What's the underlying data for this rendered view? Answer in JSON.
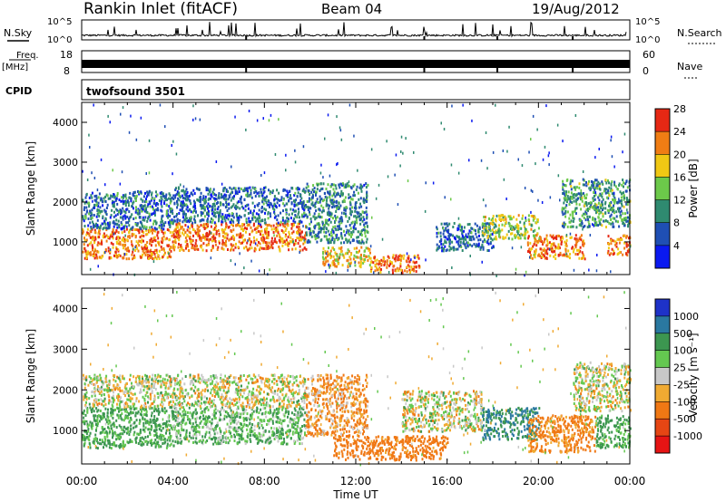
{
  "header": {
    "station": "Rankin Inlet (fitACF)",
    "beam": "Beam 04",
    "date": "19/Aug/2012"
  },
  "panels": {
    "nsky": {
      "label": "N.Sky",
      "tick_top": "10^5",
      "tick_bottom": "10^0"
    },
    "nsearch": {
      "label": "N.Search",
      "tick_top": "10^5",
      "tick_bottom": "10^0"
    },
    "freq": {
      "label_line1": "Freq.",
      "label_line2": "[MHz]",
      "tick_top": "18",
      "tick_bottom": "8"
    },
    "nave": {
      "label": "Nave",
      "tick_top": "60",
      "tick_bottom": "0"
    },
    "cpid": {
      "label": "CPID",
      "value": "twofsound 3501"
    }
  },
  "x_axis": {
    "label": "Time UT",
    "ticks": [
      "00:00",
      "04:00",
      "08:00",
      "12:00",
      "16:00",
      "20:00",
      "00:00"
    ]
  },
  "colorbars": {
    "power": {
      "label": "Power [dB]",
      "ticks": [
        "4",
        "8",
        "12",
        "16",
        "20",
        "24",
        "28"
      ],
      "colors": [
        "#0a19f0",
        "#1f4fb4",
        "#2f8a70",
        "#6cc94a",
        "#f0c814",
        "#f07d14",
        "#e62814"
      ]
    },
    "velocity": {
      "label": "Velocity [m s⁻¹]",
      "ticks": [
        "1000",
        "500",
        "100",
        "25",
        "-25",
        "-100",
        "-500",
        "-1000"
      ],
      "colors": [
        "#1e32c8",
        "#2a78a0",
        "#3c9650",
        "#64c850",
        "#c8c8c8",
        "#f0aa32",
        "#f07814",
        "#e64614",
        "#e61414"
      ]
    }
  },
  "chart_data": [
    {
      "type": "heatmap",
      "title": "",
      "quantity": "Power",
      "unit": "dB",
      "xlabel": "Time UT",
      "ylabel": "Slant Range [km]",
      "xlim": [
        "00:00",
        "24:00"
      ],
      "ylim": [
        180,
        4500
      ],
      "yticks": [
        1000,
        2000,
        3000,
        4000
      ],
      "color_range": [
        0,
        30
      ],
      "regions": [
        {
          "t": [
            0,
            4.0
          ],
          "range": [
            600,
            1350
          ],
          "level": 24
        },
        {
          "t": [
            0,
            4.0
          ],
          "range": [
            1350,
            2300
          ],
          "level": 8
        },
        {
          "t": [
            4.0,
            9.8
          ],
          "range": [
            800,
            1500
          ],
          "level": 24
        },
        {
          "t": [
            4.0,
            9.8
          ],
          "range": [
            1500,
            2400
          ],
          "level": 8
        },
        {
          "t": [
            9.8,
            12.5
          ],
          "range": [
            1000,
            2500
          ],
          "level": 10
        },
        {
          "t": [
            10.5,
            12.6
          ],
          "range": [
            400,
            900
          ],
          "level": 20
        },
        {
          "t": [
            12.6,
            14.8
          ],
          "range": [
            250,
            700
          ],
          "level": 24
        },
        {
          "t": [
            15.5,
            18.0
          ],
          "range": [
            800,
            1500
          ],
          "level": 8
        },
        {
          "t": [
            17.5,
            20.0
          ],
          "range": [
            1100,
            1700
          ],
          "level": 16
        },
        {
          "t": [
            19.5,
            22.0
          ],
          "range": [
            600,
            1200
          ],
          "level": 24
        },
        {
          "t": [
            21.0,
            24.0
          ],
          "range": [
            1400,
            2600
          ],
          "level": 12
        },
        {
          "t": [
            23.0,
            24.0
          ],
          "range": [
            700,
            1200
          ],
          "level": 24
        }
      ]
    },
    {
      "type": "heatmap",
      "title": "",
      "quantity": "Velocity",
      "unit": "m s⁻¹",
      "xlabel": "Time UT",
      "ylabel": "Slant Range [km]",
      "xlim": [
        "00:00",
        "24:00"
      ],
      "ylim": [
        180,
        4500
      ],
      "yticks": [
        1000,
        2000,
        3000,
        4000
      ],
      "regions": [
        {
          "t": [
            0,
            4.0
          ],
          "range": [
            600,
            1600
          ],
          "velocity": 150
        },
        {
          "t": [
            0,
            4.0
          ],
          "range": [
            1600,
            2400
          ],
          "velocity": 0
        },
        {
          "t": [
            4.0,
            9.8
          ],
          "range": [
            700,
            1600
          ],
          "velocity": 100
        },
        {
          "t": [
            4.0,
            9.8
          ],
          "range": [
            1600,
            2400
          ],
          "velocity": 0
        },
        {
          "t": [
            9.8,
            12.5
          ],
          "range": [
            900,
            2400
          ],
          "velocity": -100
        },
        {
          "t": [
            11.0,
            16.0
          ],
          "range": [
            300,
            900
          ],
          "velocity": -200
        },
        {
          "t": [
            14.0,
            17.5
          ],
          "range": [
            1000,
            2000
          ],
          "velocity": 0
        },
        {
          "t": [
            17.5,
            20.0
          ],
          "range": [
            800,
            1600
          ],
          "velocity": 500
        },
        {
          "t": [
            19.5,
            22.5
          ],
          "range": [
            500,
            1400
          ],
          "velocity": -150
        },
        {
          "t": [
            21.5,
            24.0
          ],
          "range": [
            1500,
            2700
          ],
          "velocity": 0
        },
        {
          "t": [
            22.5,
            24.0
          ],
          "range": [
            600,
            1400
          ],
          "velocity": 150
        }
      ]
    }
  ]
}
